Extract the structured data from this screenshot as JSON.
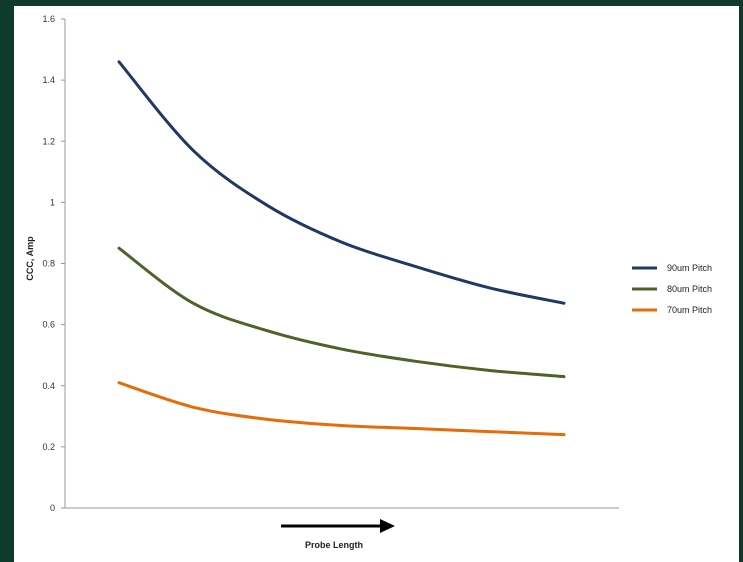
{
  "chart_data": {
    "type": "line",
    "title": "",
    "xlabel": "Probe Length",
    "ylabel": "CCC, Amp",
    "ylim": [
      0,
      1.6
    ],
    "yticks": [
      "0",
      "0.2",
      "0.4",
      "0.6",
      "0.8",
      "1",
      "1.2",
      "1.4",
      "1.6"
    ],
    "grid": false,
    "legend_position": "right",
    "x_axis_arrow": true,
    "series": [
      {
        "name": "90um Pitch",
        "color": "#1f3864",
        "values": [
          1.46,
          1.17,
          0.99,
          0.87,
          0.79,
          0.72,
          0.67
        ]
      },
      {
        "name": "80um Pitch",
        "color": "#4f6228",
        "values": [
          0.85,
          0.67,
          0.58,
          0.52,
          0.48,
          0.45,
          0.43
        ]
      },
      {
        "name": "70um Pitch",
        "color": "#e46c0a",
        "values": [
          0.41,
          0.33,
          0.29,
          0.27,
          0.26,
          0.25,
          0.24
        ]
      }
    ]
  }
}
